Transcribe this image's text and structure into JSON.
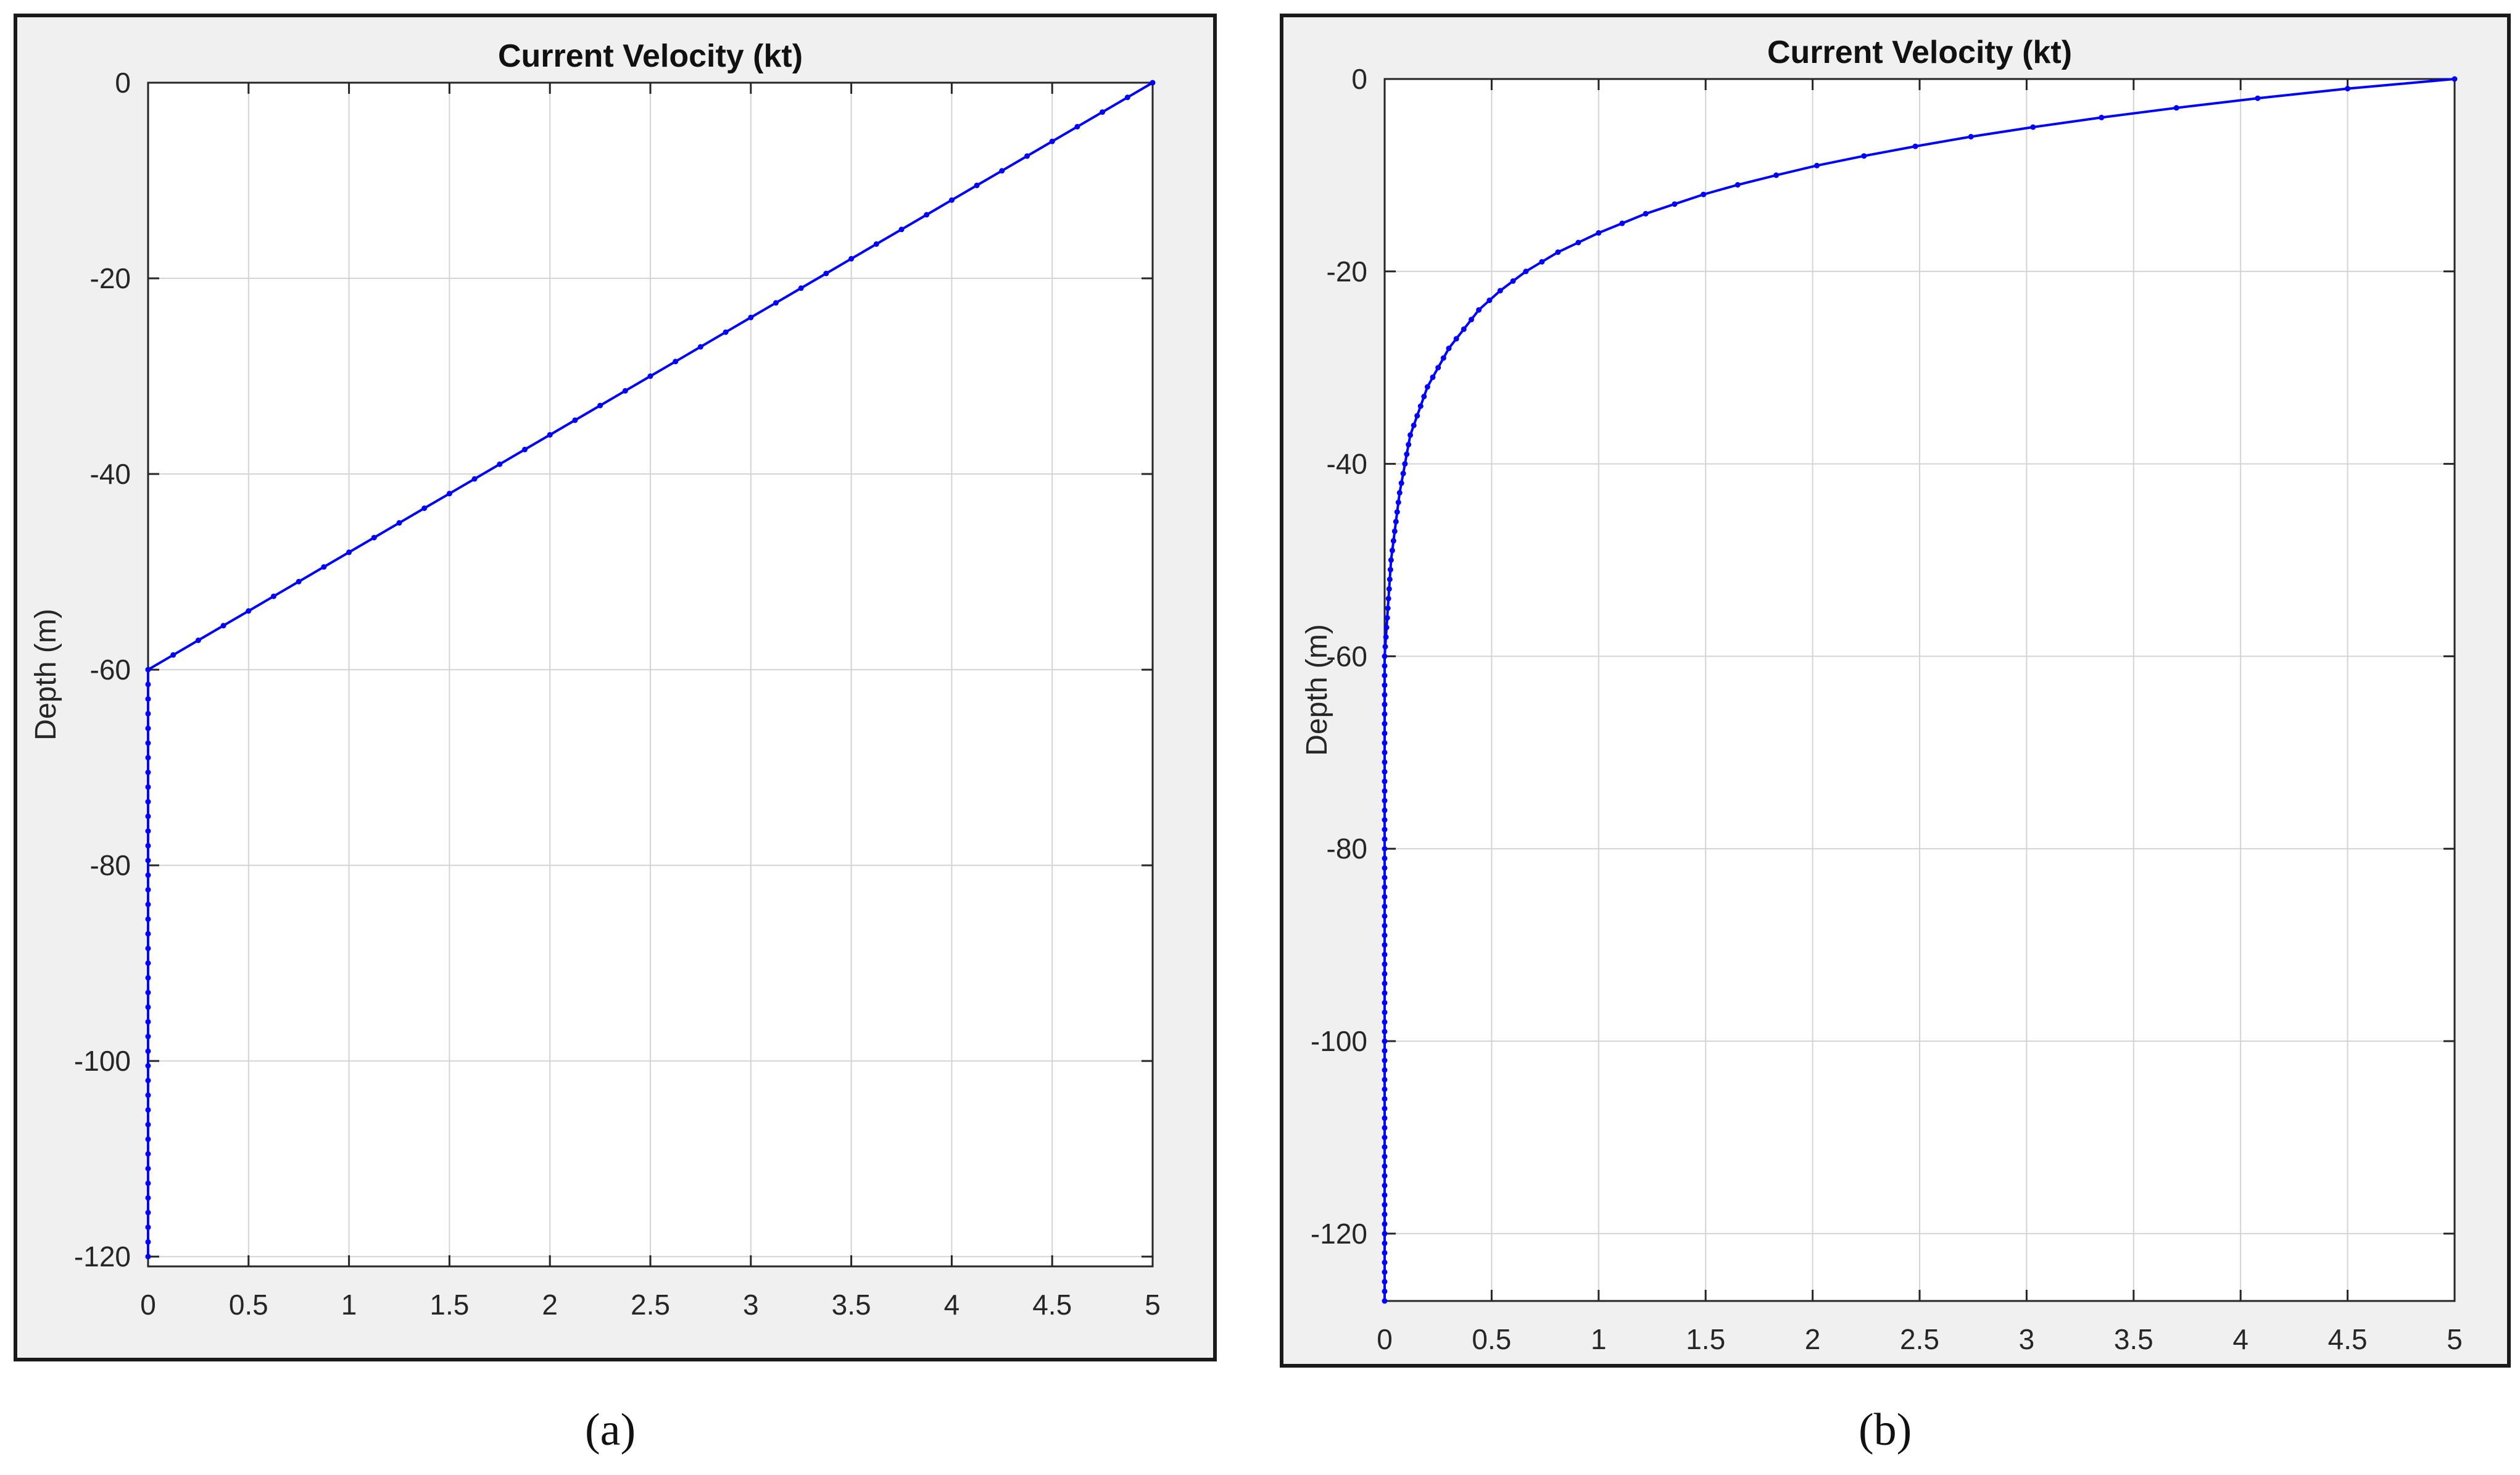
{
  "colors": {
    "series": "#0000ff",
    "grid": "#d4d4d4",
    "axes": "#262626",
    "panel_bg": "#f0f0f0",
    "plot_bg": "#ffffff"
  },
  "chart_data": [
    {
      "type": "line",
      "title": "Current Velocity (kt)",
      "xlabel": "",
      "ylabel": "Depth (m)",
      "xlim": [
        0,
        5
      ],
      "ylim": [
        -121,
        0
      ],
      "xticks": [
        0,
        0.5,
        1,
        1.5,
        2,
        2.5,
        3,
        3.5,
        4,
        4.5,
        5
      ],
      "xtick_labels": [
        "0",
        "0.5",
        "1",
        "1.5",
        "2",
        "2.5",
        "3",
        "3.5",
        "4",
        "4.5",
        "5"
      ],
      "yticks": [
        0,
        -20,
        -40,
        -60,
        -80,
        -100,
        -120
      ],
      "ytick_labels": [
        "0",
        "-20",
        "-40",
        "-60",
        "-80",
        "-100",
        "-120"
      ],
      "grid": true,
      "marker": "dot",
      "profile": "linear",
      "series": [
        {
          "x": [
            5,
            4.5,
            4,
            3.5,
            3,
            2.5,
            2,
            1.5,
            1,
            0.5,
            0,
            0,
            0,
            0,
            0,
            0,
            0
          ],
          "y": [
            0,
            -6,
            -12,
            -18,
            -24,
            -30,
            -36,
            -42,
            -48,
            -54,
            -60,
            -70,
            -80,
            -90,
            -100,
            -110,
            -121
          ]
        }
      ],
      "caption": "(a)"
    },
    {
      "type": "line",
      "title": "Current Velocity (kt)",
      "xlabel": "",
      "ylabel": "Depth (m)",
      "xlim": [
        0,
        5
      ],
      "ylim": [
        -127,
        0
      ],
      "xticks": [
        0,
        0.5,
        1,
        1.5,
        2,
        2.5,
        3,
        3.5,
        4,
        4.5,
        5
      ],
      "xtick_labels": [
        "0",
        "0.5",
        "1",
        "1.5",
        "2",
        "2.5",
        "3",
        "3.5",
        "4",
        "4.5",
        "5"
      ],
      "yticks": [
        0,
        -20,
        -40,
        -60,
        -80,
        -100,
        -120
      ],
      "ytick_labels": [
        "0",
        "-20",
        "-40",
        "-60",
        "-80",
        "-100",
        "-120"
      ],
      "grid": true,
      "marker": "dot",
      "profile": "exponential",
      "series": [
        {
          "x": [
            5,
            4.5,
            4.08,
            3.7,
            3.35,
            3.03,
            2.74,
            2.48,
            2.24,
            2.02,
            1.83,
            1.65,
            1.49,
            1.22,
            1.0,
            0.81,
            0.66,
            0.54,
            0.44,
            0.3,
            0.2,
            0.12,
            0.07,
            0.03,
            0,
            0,
            0,
            0
          ],
          "y": [
            0,
            -1,
            -2,
            -3,
            -4,
            -5,
            -6,
            -7,
            -8,
            -9,
            -10,
            -11,
            -12,
            -14,
            -16,
            -18,
            -20,
            -22,
            -24,
            -28,
            -32,
            -37,
            -43,
            -50,
            -60,
            -80,
            -100,
            -127
          ]
        }
      ],
      "caption": "(b)"
    }
  ]
}
